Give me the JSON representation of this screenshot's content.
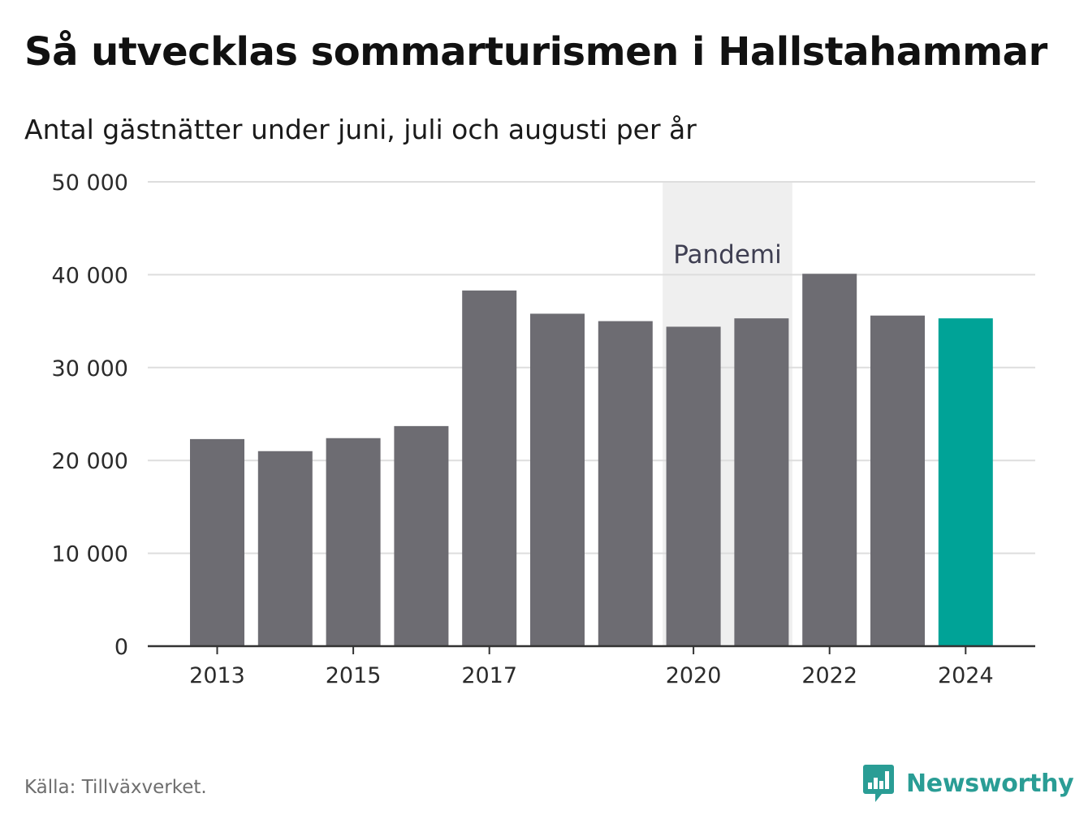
{
  "chart_data": {
    "type": "bar",
    "title": "Så utvecklas sommarturismen i Hallstahammar",
    "subtitle": "Antal gästnätter under juni, juli och augusti per år",
    "xlabel": "",
    "ylabel": "",
    "categories": [
      "2013",
      "2014",
      "2015",
      "2016",
      "2017",
      "2018",
      "2019",
      "2020",
      "2021",
      "2022",
      "2023",
      "2024"
    ],
    "values": [
      22300,
      21000,
      22400,
      23700,
      38300,
      35800,
      35000,
      34400,
      35300,
      40100,
      35600,
      35300
    ],
    "highlight_category": "2024",
    "x_tick_labels": [
      "2013",
      "2015",
      "2017",
      "2020",
      "2022",
      "2024"
    ],
    "ylim": [
      0,
      50000
    ],
    "y_ticks": [
      0,
      10000,
      20000,
      30000,
      40000,
      50000
    ],
    "y_tick_labels": [
      "0",
      "10 000",
      "20 000",
      "30 000",
      "40 000",
      "50 000"
    ],
    "grid": true,
    "annotation": {
      "label": "Pandemi",
      "from_category": "2020",
      "to_category": "2021"
    },
    "colors": {
      "bar": "#6d6c72",
      "highlight": "#00a397",
      "band": "#efefef",
      "grid": "#dddddd",
      "axis": "#333333"
    }
  },
  "footer": {
    "source": "Källa: Tillväxverket.",
    "brand": "Newsworthy",
    "brand_color": "#2a9d95",
    "brand_icon": "newsworthy-logo-icon"
  }
}
